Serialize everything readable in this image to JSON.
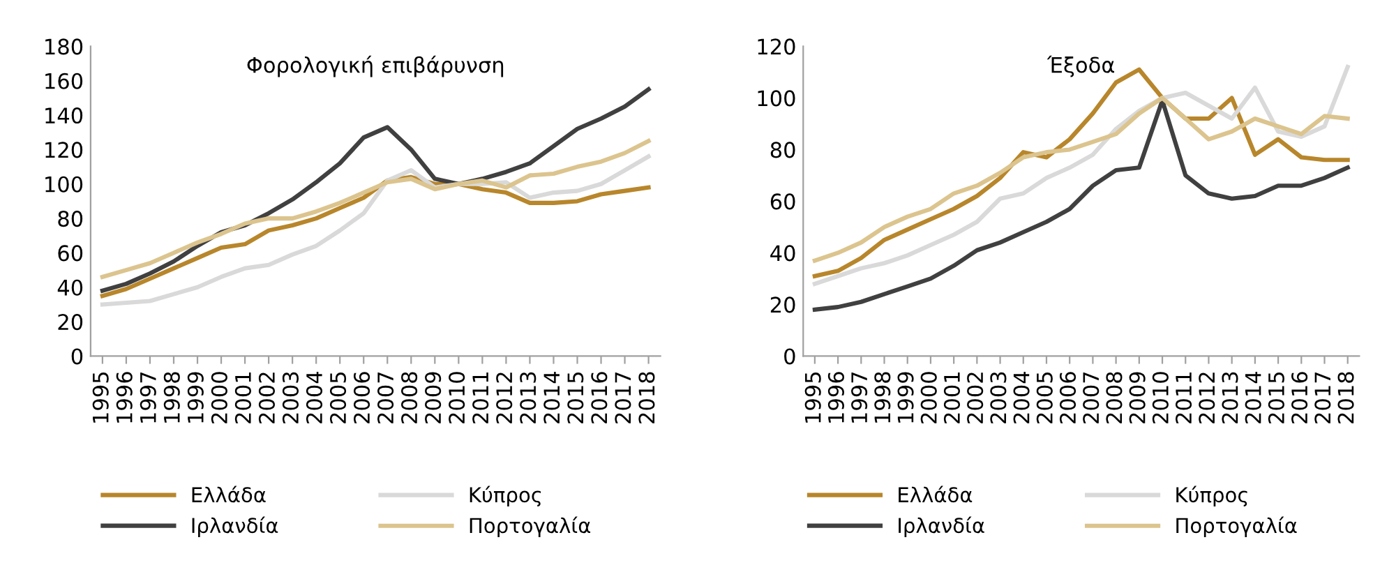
{
  "chart_data": [
    {
      "type": "line",
      "title": "Φορολογική επιβάρυνση",
      "categories": [
        "1995",
        "1996",
        "1997",
        "1998",
        "1999",
        "2000",
        "2001",
        "2002",
        "2003",
        "2004",
        "2005",
        "2006",
        "2007",
        "2008",
        "2009",
        "2010",
        "2011",
        "2012",
        "2013",
        "2014",
        "2015",
        "2016",
        "2017",
        "2018"
      ],
      "ylim": [
        0,
        180
      ],
      "yticks": [
        0,
        20,
        40,
        60,
        80,
        100,
        120,
        140,
        160,
        180
      ],
      "legend": "bottom",
      "grid": false,
      "series": [
        {
          "name": "Ελλάδα",
          "color": "#b8862b",
          "values": [
            35,
            39,
            45,
            51,
            57,
            63,
            65,
            73,
            76,
            80,
            86,
            92,
            102,
            104,
            100,
            100,
            97,
            95,
            89,
            89,
            90,
            94,
            96,
            98
          ]
        },
        {
          "name": "Ιρλανδία",
          "color": "#404040",
          "values": [
            38,
            42,
            48,
            55,
            64,
            72,
            76,
            83,
            91,
            101,
            112,
            127,
            133,
            120,
            103,
            100,
            103,
            107,
            112,
            122,
            132,
            138,
            145,
            155
          ]
        },
        {
          "name": "Κύπρος",
          "color": "#d9d9d9",
          "values": [
            30,
            31,
            32,
            36,
            40,
            46,
            51,
            53,
            59,
            64,
            73,
            83,
            102,
            108,
            98,
            100,
            100,
            101,
            92,
            95,
            96,
            100,
            108,
            116
          ]
        },
        {
          "name": "Πορτογαλία",
          "color": "#dcc48e",
          "values": [
            46,
            50,
            54,
            60,
            66,
            71,
            77,
            80,
            80,
            84,
            89,
            95,
            101,
            103,
            97,
            100,
            102,
            98,
            105,
            106,
            110,
            113,
            118,
            125
          ]
        }
      ]
    },
    {
      "type": "line",
      "title": "Έξοδα",
      "categories": [
        "1995",
        "1996",
        "1997",
        "1998",
        "1999",
        "2000",
        "2001",
        "2002",
        "2003",
        "2004",
        "2005",
        "2006",
        "2007",
        "2008",
        "2009",
        "2010",
        "2011",
        "2012",
        "2013",
        "2014",
        "2015",
        "2016",
        "2017",
        "2018"
      ],
      "ylim": [
        0,
        120
      ],
      "yticks": [
        0,
        20,
        40,
        60,
        80,
        100,
        120
      ],
      "legend": "bottom",
      "grid": false,
      "series": [
        {
          "name": "Ελλάδα",
          "color": "#b8862b",
          "values": [
            31,
            33,
            38,
            45,
            49,
            53,
            57,
            62,
            69,
            79,
            77,
            84,
            94,
            106,
            111,
            100,
            92,
            92,
            100,
            78,
            84,
            77,
            76,
            76
          ]
        },
        {
          "name": "Ιρλανδία",
          "color": "#404040",
          "values": [
            18,
            19,
            21,
            24,
            27,
            30,
            35,
            41,
            44,
            48,
            52,
            57,
            66,
            72,
            73,
            99,
            70,
            63,
            61,
            62,
            66,
            66,
            69,
            73
          ]
        },
        {
          "name": "Κύπρος",
          "color": "#d9d9d9",
          "values": [
            28,
            31,
            34,
            36,
            39,
            43,
            47,
            52,
            61,
            63,
            69,
            73,
            78,
            88,
            95,
            100,
            102,
            97,
            92,
            104,
            87,
            85,
            89,
            112
          ]
        },
        {
          "name": "Πορτογαλία",
          "color": "#dcc48e",
          "values": [
            37,
            40,
            44,
            50,
            54,
            57,
            63,
            66,
            71,
            77,
            79,
            80,
            83,
            86,
            94,
            100,
            92,
            84,
            87,
            92,
            89,
            86,
            93,
            92
          ]
        }
      ]
    }
  ]
}
